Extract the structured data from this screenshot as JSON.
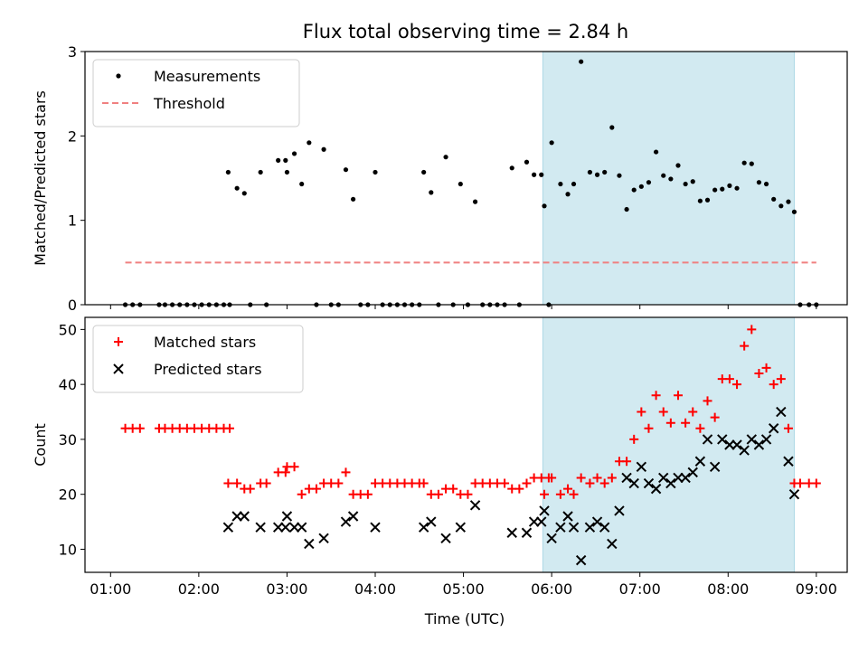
{
  "chart_data": [
    {
      "type": "scatter",
      "title": "Flux total observing time = 2.84 h",
      "xlabel": "",
      "ylabel": "Matched/Predicted stars",
      "ylim": [
        0,
        3
      ],
      "yticks": [
        "0",
        "1",
        "2",
        "3"
      ],
      "legend_position": "top-left",
      "shaded_region": {
        "from": "05:54",
        "to": "08:45",
        "color": "#add8e6"
      },
      "threshold": {
        "name": "Threshold",
        "value": 0.5,
        "from": "01:10",
        "to": "09:00",
        "color": "#f08080",
        "style": "dashed"
      },
      "series": [
        {
          "name": "Measurements",
          "color": "#000000",
          "marker": "dot",
          "points": [
            [
              "01:10",
              0
            ],
            [
              "01:15",
              0
            ],
            [
              "01:20",
              0
            ],
            [
              "01:33",
              0
            ],
            [
              "01:37",
              0
            ],
            [
              "01:42",
              0
            ],
            [
              "01:47",
              0
            ],
            [
              "01:52",
              0
            ],
            [
              "01:57",
              0
            ],
            [
              "02:02",
              0
            ],
            [
              "02:07",
              0
            ],
            [
              "02:12",
              0
            ],
            [
              "02:17",
              0
            ],
            [
              "02:21",
              0
            ],
            [
              "02:20",
              1.57
            ],
            [
              "02:26",
              1.38
            ],
            [
              "02:31",
              1.32
            ],
            [
              "02:35",
              0
            ],
            [
              "02:42",
              1.57
            ],
            [
              "02:46",
              0
            ],
            [
              "02:54",
              1.71
            ],
            [
              "02:59",
              1.71
            ],
            [
              "03:00",
              1.57
            ],
            [
              "03:05",
              1.79
            ],
            [
              "03:10",
              1.43
            ],
            [
              "03:15",
              1.92
            ],
            [
              "03:20",
              0
            ],
            [
              "03:25",
              1.84
            ],
            [
              "03:30",
              0
            ],
            [
              "03:35",
              0
            ],
            [
              "03:40",
              1.6
            ],
            [
              "03:45",
              1.25
            ],
            [
              "03:50",
              0
            ],
            [
              "03:55",
              0
            ],
            [
              "04:00",
              1.57
            ],
            [
              "04:05",
              0
            ],
            [
              "04:10",
              0
            ],
            [
              "04:15",
              0
            ],
            [
              "04:20",
              0
            ],
            [
              "04:25",
              0
            ],
            [
              "04:30",
              0
            ],
            [
              "04:33",
              1.57
            ],
            [
              "04:38",
              1.33
            ],
            [
              "04:43",
              0
            ],
            [
              "04:48",
              1.75
            ],
            [
              "04:53",
              0
            ],
            [
              "04:58",
              1.43
            ],
            [
              "05:03",
              0
            ],
            [
              "05:08",
              1.22
            ],
            [
              "05:13",
              0
            ],
            [
              "05:18",
              0
            ],
            [
              "05:23",
              0
            ],
            [
              "05:28",
              0
            ],
            [
              "05:33",
              1.62
            ],
            [
              "05:38",
              0
            ],
            [
              "05:43",
              1.69
            ],
            [
              "05:48",
              1.54
            ],
            [
              "05:53",
              1.54
            ],
            [
              "05:58",
              0
            ],
            [
              "05:55",
              1.17
            ],
            [
              "06:00",
              1.92
            ],
            [
              "06:06",
              1.43
            ],
            [
              "06:11",
              1.31
            ],
            [
              "06:15",
              1.43
            ],
            [
              "06:20",
              2.88
            ],
            [
              "06:26",
              1.57
            ],
            [
              "06:31",
              1.54
            ],
            [
              "06:36",
              1.57
            ],
            [
              "06:41",
              2.1
            ],
            [
              "06:46",
              1.53
            ],
            [
              "06:51",
              1.13
            ],
            [
              "06:56",
              1.36
            ],
            [
              "07:01",
              1.4
            ],
            [
              "07:06",
              1.45
            ],
            [
              "07:11",
              1.81
            ],
            [
              "07:16",
              1.53
            ],
            [
              "07:21",
              1.49
            ],
            [
              "07:26",
              1.65
            ],
            [
              "07:31",
              1.43
            ],
            [
              "07:36",
              1.46
            ],
            [
              "07:41",
              1.23
            ],
            [
              "07:46",
              1.24
            ],
            [
              "07:51",
              1.36
            ],
            [
              "07:56",
              1.37
            ],
            [
              "08:01",
              1.41
            ],
            [
              "08:06",
              1.38
            ],
            [
              "08:11",
              1.68
            ],
            [
              "08:16",
              1.67
            ],
            [
              "08:21",
              1.45
            ],
            [
              "08:26",
              1.43
            ],
            [
              "08:31",
              1.25
            ],
            [
              "08:36",
              1.17
            ],
            [
              "08:41",
              1.22
            ],
            [
              "08:45",
              1.1
            ],
            [
              "08:49",
              0
            ],
            [
              "08:55",
              0
            ],
            [
              "09:00",
              0
            ]
          ]
        }
      ]
    },
    {
      "type": "scatter",
      "title": "",
      "xlabel": "Time (UTC)",
      "ylabel": "Count",
      "ylim": [
        5.8,
        52.2
      ],
      "yticks": [
        "10",
        "20",
        "30",
        "40",
        "50"
      ],
      "xticks": [
        "01:00",
        "02:00",
        "03:00",
        "04:00",
        "05:00",
        "06:00",
        "07:00",
        "08:00",
        "09:00"
      ],
      "legend_position": "top-left",
      "shaded_region": {
        "from": "05:54",
        "to": "08:45",
        "color": "#add8e6"
      },
      "series": [
        {
          "name": "Matched stars",
          "color": "#ff0000",
          "marker": "plus",
          "points": [
            [
              "01:10",
              32
            ],
            [
              "01:15",
              32
            ],
            [
              "01:20",
              32
            ],
            [
              "01:33",
              32
            ],
            [
              "01:37",
              32
            ],
            [
              "01:42",
              32
            ],
            [
              "01:47",
              32
            ],
            [
              "01:52",
              32
            ],
            [
              "01:57",
              32
            ],
            [
              "02:02",
              32
            ],
            [
              "02:07",
              32
            ],
            [
              "02:12",
              32
            ],
            [
              "02:17",
              32
            ],
            [
              "02:21",
              32
            ],
            [
              "02:20",
              22
            ],
            [
              "02:26",
              22
            ],
            [
              "02:31",
              21
            ],
            [
              "02:35",
              21
            ],
            [
              "02:42",
              22
            ],
            [
              "02:46",
              22
            ],
            [
              "02:54",
              24
            ],
            [
              "02:59",
              24
            ],
            [
              "03:00",
              25
            ],
            [
              "03:05",
              25
            ],
            [
              "03:10",
              20
            ],
            [
              "03:15",
              21
            ],
            [
              "03:20",
              21
            ],
            [
              "03:25",
              22
            ],
            [
              "03:30",
              22
            ],
            [
              "03:35",
              22
            ],
            [
              "03:40",
              24
            ],
            [
              "03:45",
              20
            ],
            [
              "03:50",
              20
            ],
            [
              "03:55",
              20
            ],
            [
              "04:00",
              22
            ],
            [
              "04:05",
              22
            ],
            [
              "04:10",
              22
            ],
            [
              "04:15",
              22
            ],
            [
              "04:20",
              22
            ],
            [
              "04:25",
              22
            ],
            [
              "04:30",
              22
            ],
            [
              "04:33",
              22
            ],
            [
              "04:38",
              20
            ],
            [
              "04:43",
              20
            ],
            [
              "04:48",
              21
            ],
            [
              "04:53",
              21
            ],
            [
              "04:58",
              20
            ],
            [
              "05:03",
              20
            ],
            [
              "05:08",
              22
            ],
            [
              "05:13",
              22
            ],
            [
              "05:18",
              22
            ],
            [
              "05:23",
              22
            ],
            [
              "05:28",
              22
            ],
            [
              "05:33",
              21
            ],
            [
              "05:38",
              21
            ],
            [
              "05:43",
              22
            ],
            [
              "05:48",
              23
            ],
            [
              "05:53",
              23
            ],
            [
              "05:58",
              23
            ],
            [
              "05:55",
              20
            ],
            [
              "06:00",
              23
            ],
            [
              "06:06",
              20
            ],
            [
              "06:11",
              21
            ],
            [
              "06:15",
              20
            ],
            [
              "06:20",
              23
            ],
            [
              "06:26",
              22
            ],
            [
              "06:31",
              23
            ],
            [
              "06:36",
              22
            ],
            [
              "06:41",
              23
            ],
            [
              "06:46",
              26
            ],
            [
              "06:51",
              26
            ],
            [
              "06:56",
              30
            ],
            [
              "07:01",
              35
            ],
            [
              "07:06",
              32
            ],
            [
              "07:11",
              38
            ],
            [
              "07:16",
              35
            ],
            [
              "07:21",
              33
            ],
            [
              "07:26",
              38
            ],
            [
              "07:31",
              33
            ],
            [
              "07:36",
              35
            ],
            [
              "07:41",
              32
            ],
            [
              "07:46",
              37
            ],
            [
              "07:51",
              34
            ],
            [
              "07:56",
              41
            ],
            [
              "08:01",
              41
            ],
            [
              "08:06",
              40
            ],
            [
              "08:11",
              47
            ],
            [
              "08:16",
              50
            ],
            [
              "08:21",
              42
            ],
            [
              "08:26",
              43
            ],
            [
              "08:31",
              40
            ],
            [
              "08:36",
              41
            ],
            [
              "08:41",
              32
            ],
            [
              "08:45",
              22
            ],
            [
              "08:49",
              22
            ],
            [
              "08:55",
              22
            ],
            [
              "09:00",
              22
            ]
          ]
        },
        {
          "name": "Predicted stars",
          "color": "#000000",
          "marker": "x",
          "points": [
            [
              "02:20",
              14
            ],
            [
              "02:26",
              16
            ],
            [
              "02:31",
              16
            ],
            [
              "02:42",
              14
            ],
            [
              "02:54",
              14
            ],
            [
              "02:59",
              14
            ],
            [
              "03:00",
              16
            ],
            [
              "03:05",
              14
            ],
            [
              "03:10",
              14
            ],
            [
              "03:15",
              11
            ],
            [
              "03:25",
              12
            ],
            [
              "03:40",
              15
            ],
            [
              "03:45",
              16
            ],
            [
              "04:00",
              14
            ],
            [
              "04:33",
              14
            ],
            [
              "04:38",
              15
            ],
            [
              "04:48",
              12
            ],
            [
              "04:58",
              14
            ],
            [
              "05:08",
              18
            ],
            [
              "05:33",
              13
            ],
            [
              "05:43",
              13
            ],
            [
              "05:48",
              15
            ],
            [
              "05:53",
              15
            ],
            [
              "05:55",
              17
            ],
            [
              "06:00",
              12
            ],
            [
              "06:06",
              14
            ],
            [
              "06:11",
              16
            ],
            [
              "06:15",
              14
            ],
            [
              "06:20",
              8
            ],
            [
              "06:26",
              14
            ],
            [
              "06:31",
              15
            ],
            [
              "06:36",
              14
            ],
            [
              "06:41",
              11
            ],
            [
              "06:46",
              17
            ],
            [
              "06:51",
              23
            ],
            [
              "06:56",
              22
            ],
            [
              "07:01",
              25
            ],
            [
              "07:06",
              22
            ],
            [
              "07:11",
              21
            ],
            [
              "07:16",
              23
            ],
            [
              "07:21",
              22
            ],
            [
              "07:26",
              23
            ],
            [
              "07:31",
              23
            ],
            [
              "07:36",
              24
            ],
            [
              "07:41",
              26
            ],
            [
              "07:46",
              30
            ],
            [
              "07:51",
              25
            ],
            [
              "07:56",
              30
            ],
            [
              "08:01",
              29
            ],
            [
              "08:06",
              29
            ],
            [
              "08:11",
              28
            ],
            [
              "08:16",
              30
            ],
            [
              "08:21",
              29
            ],
            [
              "08:26",
              30
            ],
            [
              "08:31",
              32
            ],
            [
              "08:36",
              35
            ],
            [
              "08:41",
              26
            ],
            [
              "08:45",
              20
            ]
          ]
        }
      ]
    }
  ]
}
